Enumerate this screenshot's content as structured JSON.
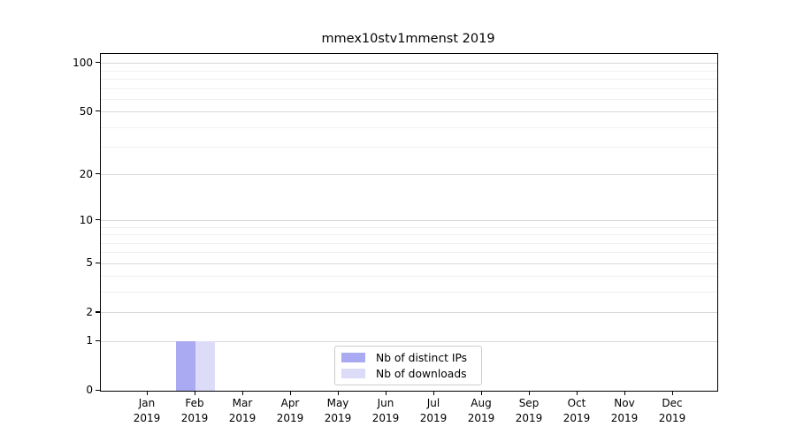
{
  "chart_data": {
    "type": "bar",
    "title": "mmex10stv1mmenst 2019",
    "categories": [
      "Jan",
      "Feb",
      "Mar",
      "Apr",
      "May",
      "Jun",
      "Jul",
      "Aug",
      "Sep",
      "Oct",
      "Nov",
      "Dec"
    ],
    "category_year": "2019",
    "series": [
      {
        "name": "Nb of distinct IPs",
        "color": "#aaaaf2",
        "values": [
          0,
          1,
          0,
          0,
          0,
          0,
          0,
          0,
          0,
          0,
          0,
          0
        ]
      },
      {
        "name": "Nb of downloads",
        "color": "#dcdcf8",
        "values": [
          0,
          1,
          0,
          0,
          0,
          0,
          0,
          0,
          0,
          0,
          0,
          0
        ]
      }
    ],
    "xlabel": "",
    "ylabel": "",
    "y_axis": {
      "scale": "log1p",
      "range": [
        0,
        100
      ],
      "major_ticks": [
        0,
        1,
        2,
        5,
        10,
        20,
        50,
        100
      ],
      "major_tick_labels": [
        "0",
        "1",
        "2",
        "5",
        "10",
        "20",
        "50",
        "100"
      ],
      "minor_gridlines": [
        3,
        4,
        6,
        7,
        8,
        9,
        30,
        40,
        60,
        70,
        80,
        90
      ]
    },
    "grid": true,
    "legend_position": "lower center"
  },
  "colors": {
    "background": "#ffffff",
    "axis": "#000000",
    "major_grid": "#d9d9d9",
    "minor_grid": "#f0f0f0",
    "legend_border": "#cccccc",
    "bar_distinct_ips": "#aaaaf2",
    "bar_downloads": "#dcdcf8"
  }
}
